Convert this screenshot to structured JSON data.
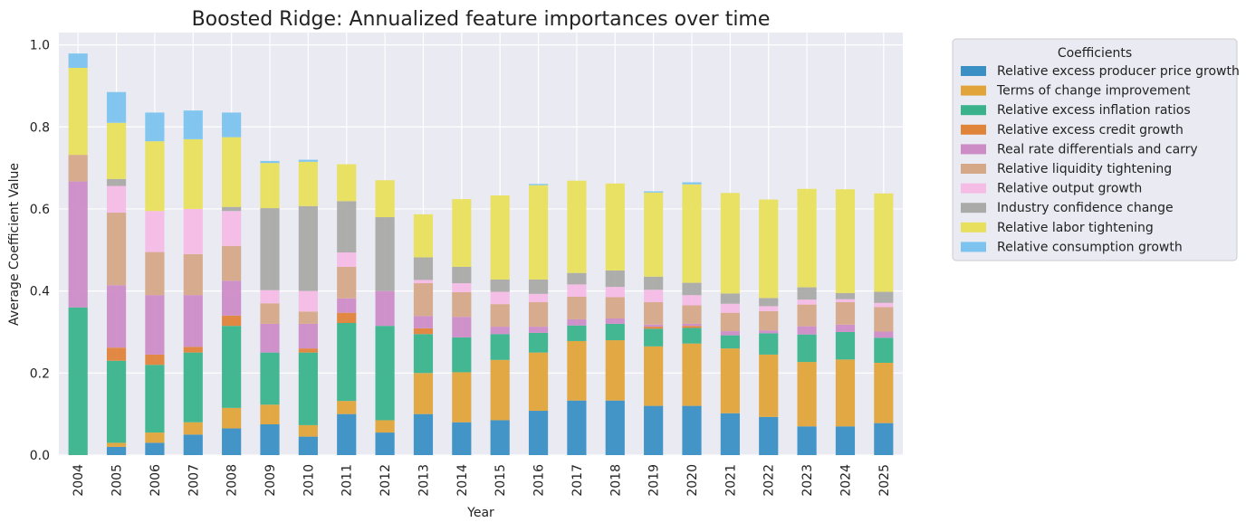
{
  "chart_data": {
    "type": "bar",
    "stacked": true,
    "title": "Boosted Ridge: Annualized feature importances over time",
    "xlabel": "Year",
    "ylabel": "Average Coefficient Value",
    "ylim": [
      0,
      1.03
    ],
    "yticks": [
      0.0,
      0.2,
      0.4,
      0.6,
      0.8,
      1.0
    ],
    "ytick_labels": [
      "0.0",
      "0.2",
      "0.4",
      "0.6",
      "0.8",
      "1.0"
    ],
    "grid": true,
    "legend": {
      "title": "Coefficients",
      "placement": "outside-top-right"
    },
    "categories": [
      "2004",
      "2005",
      "2006",
      "2007",
      "2008",
      "2009",
      "2010",
      "2011",
      "2012",
      "2013",
      "2014",
      "2015",
      "2016",
      "2017",
      "2018",
      "2019",
      "2020",
      "2021",
      "2022",
      "2023",
      "2024",
      "2025"
    ],
    "series": [
      {
        "name": "Relative excess producer price growth",
        "color": "#3a8fc4",
        "values": [
          0.0,
          0.02,
          0.03,
          0.05,
          0.065,
          0.075,
          0.045,
          0.1,
          0.055,
          0.1,
          0.08,
          0.085,
          0.108,
          0.133,
          0.133,
          0.12,
          0.12,
          0.102,
          0.093,
          0.07,
          0.07,
          0.078
        ]
      },
      {
        "name": "Terms of change improvement",
        "color": "#e0a43a",
        "values": [
          0.0,
          0.01,
          0.025,
          0.03,
          0.05,
          0.048,
          0.028,
          0.032,
          0.03,
          0.1,
          0.122,
          0.147,
          0.142,
          0.145,
          0.147,
          0.145,
          0.152,
          0.158,
          0.152,
          0.157,
          0.163,
          0.147
        ]
      },
      {
        "name": "Relative excess inflation ratios",
        "color": "#3ab38c",
        "values": [
          0.36,
          0.2,
          0.165,
          0.17,
          0.2,
          0.127,
          0.177,
          0.19,
          0.23,
          0.095,
          0.085,
          0.063,
          0.048,
          0.038,
          0.04,
          0.043,
          0.038,
          0.032,
          0.052,
          0.067,
          0.067,
          0.061
        ]
      },
      {
        "name": "Relative excess credit growth",
        "color": "#e0843a",
        "values": [
          0.0,
          0.032,
          0.025,
          0.014,
          0.025,
          0.0,
          0.01,
          0.025,
          0.0,
          0.014,
          0.0,
          0.0,
          0.0,
          0.0,
          0.0,
          0.005,
          0.005,
          0.0,
          0.0,
          0.0,
          0.0,
          0.0
        ]
      },
      {
        "name": "Real rate differentials and carry",
        "color": "#cd8cc6",
        "values": [
          0.307,
          0.152,
          0.145,
          0.126,
          0.085,
          0.07,
          0.06,
          0.035,
          0.085,
          0.03,
          0.05,
          0.018,
          0.015,
          0.015,
          0.013,
          0.005,
          0.005,
          0.01,
          0.007,
          0.02,
          0.018,
          0.015
        ]
      },
      {
        "name": "Relative liquidity tightening",
        "color": "#d5a888",
        "values": [
          0.065,
          0.177,
          0.105,
          0.1,
          0.085,
          0.05,
          0.03,
          0.077,
          0.0,
          0.08,
          0.06,
          0.055,
          0.06,
          0.055,
          0.052,
          0.055,
          0.045,
          0.045,
          0.047,
          0.053,
          0.055,
          0.06
        ]
      },
      {
        "name": "Relative output growth",
        "color": "#f5bce6",
        "values": [
          0.0,
          0.065,
          0.1,
          0.11,
          0.085,
          0.032,
          0.05,
          0.035,
          0.0,
          0.008,
          0.022,
          0.03,
          0.02,
          0.03,
          0.025,
          0.03,
          0.025,
          0.022,
          0.012,
          0.012,
          0.007,
          0.01
        ]
      },
      {
        "name": "Industry confidence change",
        "color": "#aaaaa8",
        "values": [
          0.0,
          0.017,
          0.0,
          0.0,
          0.01,
          0.2,
          0.207,
          0.125,
          0.18,
          0.055,
          0.04,
          0.03,
          0.035,
          0.028,
          0.04,
          0.032,
          0.03,
          0.025,
          0.02,
          0.03,
          0.015,
          0.027
        ]
      },
      {
        "name": "Relative labor tightening",
        "color": "#e8e05c",
        "values": [
          0.212,
          0.137,
          0.17,
          0.17,
          0.17,
          0.11,
          0.108,
          0.09,
          0.09,
          0.105,
          0.165,
          0.205,
          0.23,
          0.225,
          0.212,
          0.205,
          0.24,
          0.245,
          0.24,
          0.24,
          0.253,
          0.24
        ]
      },
      {
        "name": "Relative consumption growth",
        "color": "#7cc4ef",
        "values": [
          0.035,
          0.075,
          0.07,
          0.07,
          0.06,
          0.005,
          0.005,
          0.0,
          0.0,
          0.0,
          0.0,
          0.0,
          0.003,
          0.0,
          0.0,
          0.003,
          0.005,
          0.0,
          0.0,
          0.0,
          0.0,
          0.0
        ]
      }
    ]
  }
}
